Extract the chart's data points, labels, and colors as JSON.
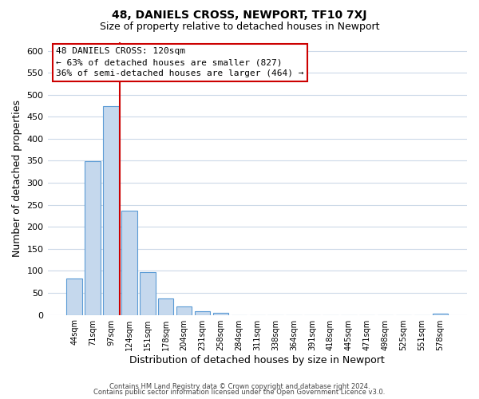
{
  "title1": "48, DANIELS CROSS, NEWPORT, TF10 7XJ",
  "title2": "Size of property relative to detached houses in Newport",
  "xlabel": "Distribution of detached houses by size in Newport",
  "ylabel": "Number of detached properties",
  "bar_labels": [
    "44sqm",
    "71sqm",
    "97sqm",
    "124sqm",
    "151sqm",
    "178sqm",
    "204sqm",
    "231sqm",
    "258sqm",
    "284sqm",
    "311sqm",
    "338sqm",
    "364sqm",
    "391sqm",
    "418sqm",
    "445sqm",
    "471sqm",
    "498sqm",
    "525sqm",
    "551sqm",
    "578sqm"
  ],
  "bar_values": [
    82,
    349,
    474,
    236,
    97,
    37,
    19,
    8,
    5,
    0,
    0,
    0,
    0,
    0,
    0,
    0,
    0,
    0,
    0,
    0,
    3
  ],
  "bar_color": "#c5d8ed",
  "bar_edge_color": "#5b9bd5",
  "vline_color": "#cc0000",
  "vline_position": 2.5,
  "ylim": [
    0,
    620
  ],
  "yticks": [
    0,
    50,
    100,
    150,
    200,
    250,
    300,
    350,
    400,
    450,
    500,
    550,
    600
  ],
  "annotation_title": "48 DANIELS CROSS: 120sqm",
  "annotation_line1": "← 63% of detached houses are smaller (827)",
  "annotation_line2": "36% of semi-detached houses are larger (464) →",
  "footer1": "Contains HM Land Registry data © Crown copyright and database right 2024.",
  "footer2": "Contains public sector information licensed under the Open Government Licence v3.0.",
  "bg_color": "#ffffff",
  "grid_color": "#ccd9e8"
}
